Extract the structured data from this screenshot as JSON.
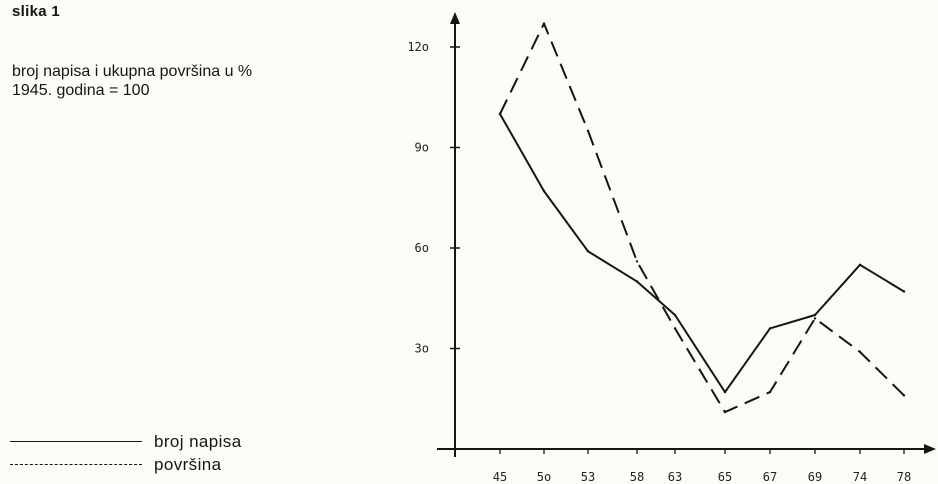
{
  "figure_label": "slika 1",
  "description_line1": "broj napisa i ukupna površina u %",
  "description_line2": "1945. godina = 100",
  "chart_data": {
    "type": "line",
    "title": "",
    "xlabel": "",
    "ylabel": "",
    "categories": [
      "45",
      "5o",
      "53",
      "58",
      "63",
      "65",
      "67",
      "69",
      "74",
      "78"
    ],
    "y_ticks": [
      30,
      60,
      90,
      120
    ],
    "y_tick_labels": [
      "3o",
      "6o",
      "9o",
      "12o"
    ],
    "ylim": [
      0,
      130
    ],
    "grid": false,
    "legend_position": "bottom-left",
    "series": [
      {
        "name": "broj napisa",
        "style": "solid",
        "values": [
          100,
          77,
          59,
          50,
          40,
          17,
          36,
          40,
          55,
          47
        ]
      },
      {
        "name": "površina",
        "style": "dashed",
        "values": [
          100,
          127,
          95,
          56,
          36,
          11,
          17,
          39,
          29,
          16
        ]
      }
    ]
  },
  "colors": {
    "ink": "#151515",
    "paper": "#fbfbf8"
  }
}
